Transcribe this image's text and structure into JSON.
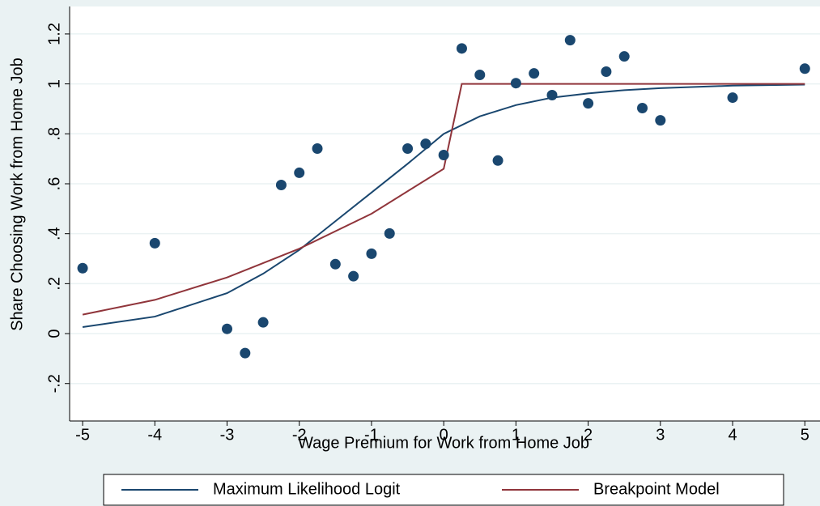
{
  "chart_data": {
    "type": "scatter",
    "x_label": "Wage Premium for Work from Home Job",
    "y_label": "Share Choosing Work from Home Job",
    "x": [
      -5,
      -4,
      -3,
      -2.75,
      -2.5,
      -2.25,
      -2,
      -1.75,
      -1.5,
      -1.25,
      -1,
      -0.75,
      -0.5,
      -0.25,
      0,
      0.25,
      0.5,
      0.75,
      1,
      1.25,
      1.5,
      1.75,
      2,
      2.25,
      2.5,
      2.75,
      3,
      4,
      5
    ],
    "values": [
      0.262,
      0.362,
      0.019,
      -0.078,
      0.045,
      0.595,
      0.644,
      0.741,
      0.278,
      0.23,
      0.32,
      0.401,
      0.741,
      0.76,
      0.715,
      1.142,
      1.036,
      0.693,
      1.003,
      1.042,
      0.955,
      1.175,
      0.922,
      1.049,
      1.11,
      0.903,
      0.854,
      0.945,
      1.061
    ],
    "color": "#1a476f",
    "lines": [
      {
        "name": "Maximum Likelihood Logit",
        "color": "#1a476f",
        "x": [
          -5,
          -4,
          -3,
          -2.5,
          -2,
          -1.5,
          -1,
          -0.5,
          0,
          0.5,
          1,
          1.5,
          2,
          2.5,
          3,
          4,
          5
        ],
        "values": [
          0.026,
          0.068,
          0.162,
          0.24,
          0.335,
          0.45,
          0.565,
          0.68,
          0.8,
          0.87,
          0.915,
          0.945,
          0.962,
          0.975,
          0.983,
          0.993,
          0.997
        ]
      },
      {
        "name": "Breakpoint Model",
        "color": "#90353b",
        "x": [
          -5,
          -4,
          -3,
          -2,
          -1,
          0,
          0.25,
          5
        ],
        "values": [
          0.076,
          0.135,
          0.225,
          0.34,
          0.48,
          0.66,
          1.0,
          1.0
        ]
      }
    ],
    "xlim": [
      -5.18,
      5.21
    ],
    "ylim": [
      -0.35,
      1.31
    ],
    "xticks": [
      -5,
      -4,
      -3,
      -2,
      -1,
      0,
      1,
      2,
      3,
      4,
      5
    ],
    "yticks": [
      {
        "value": -0.2,
        "label": "-.2"
      },
      0,
      {
        "value": 0.2,
        "label": ".2"
      },
      {
        "value": 0.4,
        "label": ".4"
      },
      {
        "value": 0.6,
        "label": ".6"
      },
      {
        "value": 0.8,
        "label": ".8"
      },
      1,
      1.2
    ],
    "grid": true
  }
}
